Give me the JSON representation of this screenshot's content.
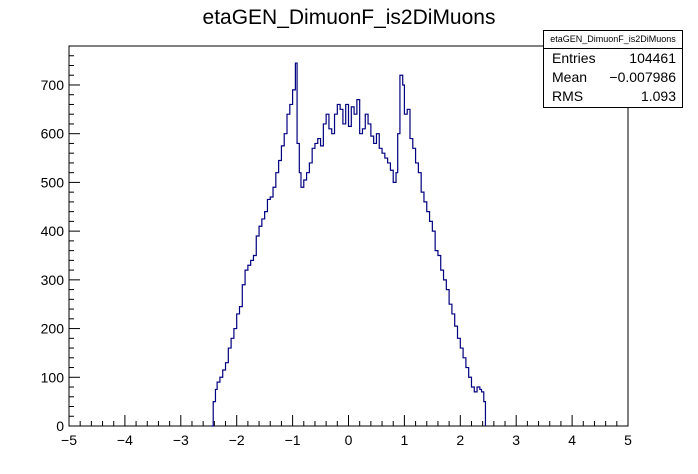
{
  "chart_data": {
    "type": "histogram",
    "title": "etaGEN_DimuonF_is2DiMuons",
    "xlim": [
      -5,
      5
    ],
    "ylim": [
      0,
      780
    ],
    "x_ticks": [
      -5,
      -4,
      -3,
      -2,
      -1,
      0,
      1,
      2,
      3,
      4,
      5
    ],
    "y_ticks": [
      0,
      100,
      200,
      300,
      400,
      500,
      600,
      700
    ],
    "line_color": "#000080",
    "stats": {
      "name": "etaGEN_DimuonF_is2DiMuons",
      "rows": [
        {
          "label": "Entries",
          "value": "104461"
        },
        {
          "label": "Mean",
          "value": "−0.007986"
        },
        {
          "label": "RMS",
          "value": "1.093"
        }
      ]
    },
    "points": [
      [
        -2.45,
        0
      ],
      [
        -2.42,
        50
      ],
      [
        -2.38,
        75
      ],
      [
        -2.35,
        90
      ],
      [
        -2.3,
        100
      ],
      [
        -2.25,
        115
      ],
      [
        -2.2,
        130
      ],
      [
        -2.15,
        160
      ],
      [
        -2.1,
        180
      ],
      [
        -2.05,
        200
      ],
      [
        -2.0,
        230
      ],
      [
        -1.95,
        245
      ],
      [
        -1.9,
        290
      ],
      [
        -1.85,
        320
      ],
      [
        -1.8,
        330
      ],
      [
        -1.75,
        340
      ],
      [
        -1.7,
        350
      ],
      [
        -1.65,
        390
      ],
      [
        -1.6,
        410
      ],
      [
        -1.55,
        425
      ],
      [
        -1.5,
        440
      ],
      [
        -1.45,
        465
      ],
      [
        -1.4,
        470
      ],
      [
        -1.35,
        490
      ],
      [
        -1.3,
        520
      ],
      [
        -1.25,
        545
      ],
      [
        -1.2,
        575
      ],
      [
        -1.15,
        600
      ],
      [
        -1.1,
        640
      ],
      [
        -1.05,
        660
      ],
      [
        -1.0,
        690
      ],
      [
        -0.95,
        745
      ],
      [
        -0.92,
        580
      ],
      [
        -0.88,
        520
      ],
      [
        -0.85,
        490
      ],
      [
        -0.8,
        505
      ],
      [
        -0.75,
        520
      ],
      [
        -0.7,
        540
      ],
      [
        -0.65,
        570
      ],
      [
        -0.6,
        580
      ],
      [
        -0.55,
        590
      ],
      [
        -0.5,
        575
      ],
      [
        -0.45,
        620
      ],
      [
        -0.4,
        640
      ],
      [
        -0.35,
        610
      ],
      [
        -0.3,
        600
      ],
      [
        -0.25,
        640
      ],
      [
        -0.2,
        660
      ],
      [
        -0.15,
        650
      ],
      [
        -0.1,
        620
      ],
      [
        -0.05,
        660
      ],
      [
        0.0,
        615
      ],
      [
        0.05,
        655
      ],
      [
        0.1,
        640
      ],
      [
        0.15,
        670
      ],
      [
        0.2,
        600
      ],
      [
        0.25,
        610
      ],
      [
        0.3,
        640
      ],
      [
        0.35,
        620
      ],
      [
        0.4,
        595
      ],
      [
        0.45,
        580
      ],
      [
        0.5,
        600
      ],
      [
        0.55,
        570
      ],
      [
        0.6,
        560
      ],
      [
        0.65,
        550
      ],
      [
        0.7,
        540
      ],
      [
        0.75,
        525
      ],
      [
        0.8,
        500
      ],
      [
        0.85,
        520
      ],
      [
        0.88,
        600
      ],
      [
        0.92,
        720
      ],
      [
        0.97,
        700
      ],
      [
        1.0,
        640
      ],
      [
        1.05,
        650
      ],
      [
        1.1,
        590
      ],
      [
        1.15,
        570
      ],
      [
        1.2,
        540
      ],
      [
        1.25,
        520
      ],
      [
        1.3,
        480
      ],
      [
        1.35,
        460
      ],
      [
        1.4,
        440
      ],
      [
        1.45,
        420
      ],
      [
        1.5,
        400
      ],
      [
        1.55,
        360
      ],
      [
        1.6,
        350
      ],
      [
        1.65,
        320
      ],
      [
        1.7,
        300
      ],
      [
        1.75,
        280
      ],
      [
        1.8,
        250
      ],
      [
        1.85,
        230
      ],
      [
        1.9,
        205
      ],
      [
        1.95,
        180
      ],
      [
        2.0,
        160
      ],
      [
        2.05,
        140
      ],
      [
        2.1,
        120
      ],
      [
        2.15,
        100
      ],
      [
        2.2,
        80
      ],
      [
        2.25,
        70
      ],
      [
        2.3,
        80
      ],
      [
        2.35,
        75
      ],
      [
        2.38,
        70
      ],
      [
        2.42,
        50
      ],
      [
        2.45,
        0
      ]
    ]
  }
}
